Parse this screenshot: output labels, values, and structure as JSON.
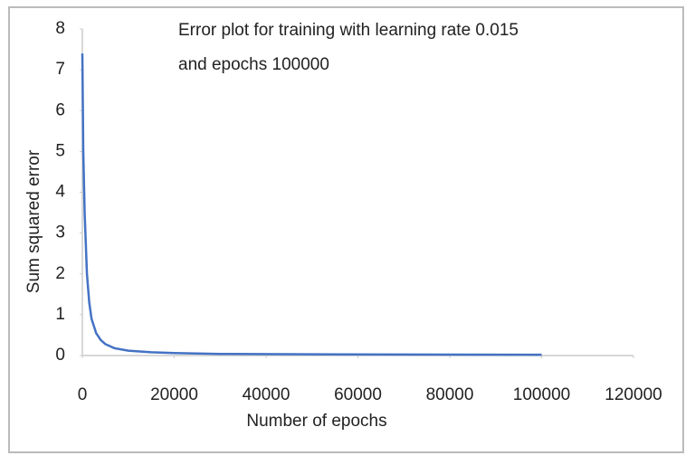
{
  "chart_data": {
    "type": "line",
    "title": [
      "Error plot for training with learning rate 0.015",
      "and epochs 100000"
    ],
    "x_label": "Number of epochs",
    "y_label": "Sum squared error",
    "x": [
      0,
      200,
      500,
      1000,
      1500,
      2000,
      3000,
      4000,
      5000,
      7000,
      10000,
      15000,
      20000,
      30000,
      50000,
      70000,
      100000
    ],
    "series": [
      {
        "color": "#4472c4",
        "values": [
          7.4,
          5.0,
          3.5,
          2.0,
          1.3,
          0.9,
          0.55,
          0.38,
          0.28,
          0.18,
          0.12,
          0.08,
          0.06,
          0.04,
          0.03,
          0.025,
          0.02
        ]
      }
    ],
    "xlim": [
      0,
      120000
    ],
    "xticks": [
      0,
      20000,
      40000,
      60000,
      80000,
      100000,
      120000
    ],
    "ylim": [
      0,
      8
    ],
    "yticks": [
      0,
      1,
      2,
      3,
      4,
      5,
      6,
      7,
      8
    ]
  }
}
